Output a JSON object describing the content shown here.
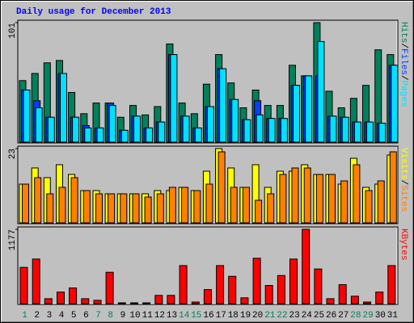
{
  "chart_data": [
    {
      "type": "bar",
      "title": "Daily usage for December 2013",
      "ylim": [
        0,
        101
      ],
      "yticks": [
        101
      ],
      "separator": "/",
      "series": [
        {
          "name": "Hits",
          "color": "#00805c",
          "values": [
            52,
            58,
            67,
            69,
            42,
            24,
            33,
            33,
            21,
            31,
            23,
            30,
            83,
            33,
            24,
            49,
            74,
            50,
            29,
            44,
            31,
            31,
            65,
            56,
            101,
            43,
            29,
            37,
            48,
            78,
            74
          ]
        },
        {
          "name": "Files",
          "color": "#0040ff",
          "values": [
            44,
            35,
            21,
            58,
            21,
            14,
            12,
            33,
            10,
            22,
            12,
            17,
            74,
            22,
            12,
            30,
            62,
            36,
            19,
            35,
            20,
            20,
            48,
            56,
            56,
            22,
            21,
            17,
            17,
            16,
            65
          ]
        },
        {
          "name": "Pages",
          "color": "#00e0ff",
          "values": [
            44,
            29,
            21,
            58,
            21,
            12,
            12,
            31,
            10,
            22,
            12,
            17,
            74,
            22,
            12,
            30,
            62,
            36,
            19,
            23,
            20,
            20,
            48,
            56,
            85,
            22,
            21,
            17,
            17,
            16,
            65
          ]
        }
      ]
    },
    {
      "type": "bar",
      "ylim": [
        0,
        23
      ],
      "yticks": [
        23
      ],
      "separator": "/",
      "series": [
        {
          "name": "Visits",
          "color": "#ffff00",
          "values": [
            12,
            17,
            14,
            18,
            15,
            10,
            10,
            9,
            9,
            9,
            9,
            10,
            10,
            11,
            10,
            16,
            23,
            17,
            11,
            18,
            11,
            16,
            16,
            18,
            15,
            15,
            12,
            20,
            11,
            12,
            21
          ]
        },
        {
          "name": "Sites",
          "color": "#ff8000",
          "values": [
            12,
            14,
            9,
            11,
            14,
            10,
            9,
            9,
            9,
            9,
            8,
            9,
            11,
            11,
            10,
            12,
            22,
            11,
            11,
            7,
            9,
            15,
            17,
            17,
            15,
            15,
            13,
            18,
            10,
            13,
            22
          ]
        }
      ]
    },
    {
      "type": "bar",
      "ylim": [
        0,
        1177
      ],
      "yticks": [
        1177
      ],
      "categories": [
        "1",
        "2",
        "3",
        "4",
        "5",
        "6",
        "7",
        "8",
        "9",
        "10",
        "11",
        "12",
        "13",
        "14",
        "15",
        "16",
        "17",
        "18",
        "19",
        "20",
        "21",
        "22",
        "23",
        "24",
        "25",
        "26",
        "27",
        "28",
        "29",
        "30",
        "31"
      ],
      "category_colors": [
        "#00805c",
        "#000000",
        "#000000",
        "#000000",
        "#000000",
        "#000000",
        "#00805c",
        "#00805c",
        "#000000",
        "#000000",
        "#000000",
        "#000000",
        "#000000",
        "#00805c",
        "#00805c",
        "#000000",
        "#000000",
        "#000000",
        "#000000",
        "#000000",
        "#00805c",
        "#00805c",
        "#000000",
        "#000000",
        "#000000",
        "#000000",
        "#000000",
        "#00805c",
        "#00805c",
        "#000000",
        "#000000"
      ],
      "series": [
        {
          "name": "KBytes",
          "color": "#ff0000",
          "values": [
            575,
            706,
            78,
            183,
            248,
            78,
            52,
            497,
            13,
            13,
            13,
            131,
            131,
            602,
            26,
            222,
            602,
            432,
            92,
            719,
            288,
            445,
            706,
            1177,
            549,
            78,
            301,
            118,
            26,
            183,
            602
          ]
        }
      ]
    }
  ]
}
